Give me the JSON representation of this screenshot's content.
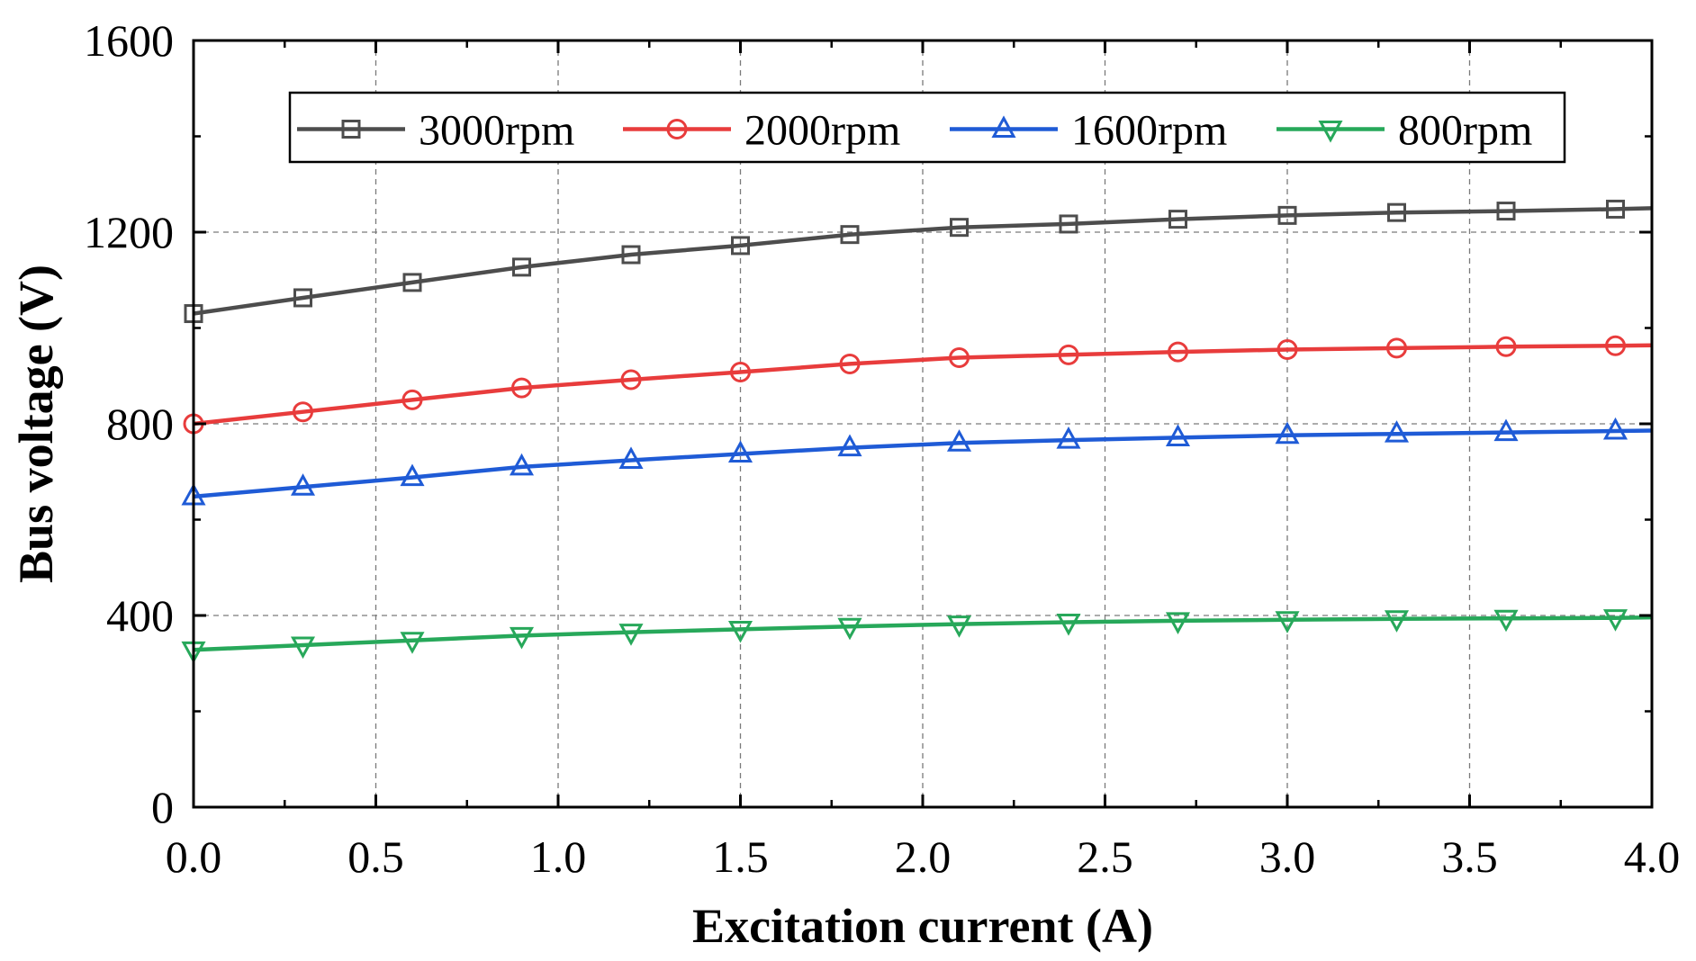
{
  "chart_data": {
    "type": "line",
    "title": "",
    "xlabel": "Excitation current (A)",
    "ylabel": "Bus voltage (V)",
    "xlim": [
      0,
      4
    ],
    "ylim": [
      0,
      1600
    ],
    "x_ticks": [
      "0.0",
      "0.5",
      "1.0",
      "1.5",
      "2.0",
      "2.5",
      "3.0",
      "3.5",
      "4.0"
    ],
    "y_ticks": [
      "0",
      "400",
      "800",
      "1200",
      "1600"
    ],
    "grid": true,
    "legend_position": "top",
    "x": [
      0.0,
      0.3,
      0.6,
      0.9,
      1.2,
      1.5,
      1.8,
      2.1,
      2.4,
      2.7,
      3.0,
      3.3,
      3.6,
      3.9,
      4.0
    ],
    "series": [
      {
        "name": "3000rpm",
        "color": "#4d4d4d",
        "marker": "square",
        "values": [
          1030,
          1063,
          1095,
          1127,
          1153,
          1172,
          1195,
          1210,
          1217,
          1227,
          1235,
          1241,
          1244,
          1248,
          1250
        ]
      },
      {
        "name": "2000rpm",
        "color": "#e83c3c",
        "marker": "circle",
        "values": [
          800,
          825,
          850,
          875,
          892,
          908,
          925,
          938,
          944,
          950,
          955,
          958,
          961,
          963,
          964
        ]
      },
      {
        "name": "1600rpm",
        "color": "#1f5bd6",
        "marker": "triangle-up",
        "values": [
          648,
          668,
          688,
          710,
          724,
          737,
          750,
          760,
          766,
          771,
          776,
          779,
          782,
          785,
          786
        ]
      },
      {
        "name": "800rpm",
        "color": "#27a85a",
        "marker": "triangle-down",
        "values": [
          328,
          338,
          348,
          358,
          365,
          371,
          377,
          382,
          386,
          389,
          391,
          393,
          394,
          395,
          396
        ]
      }
    ]
  }
}
